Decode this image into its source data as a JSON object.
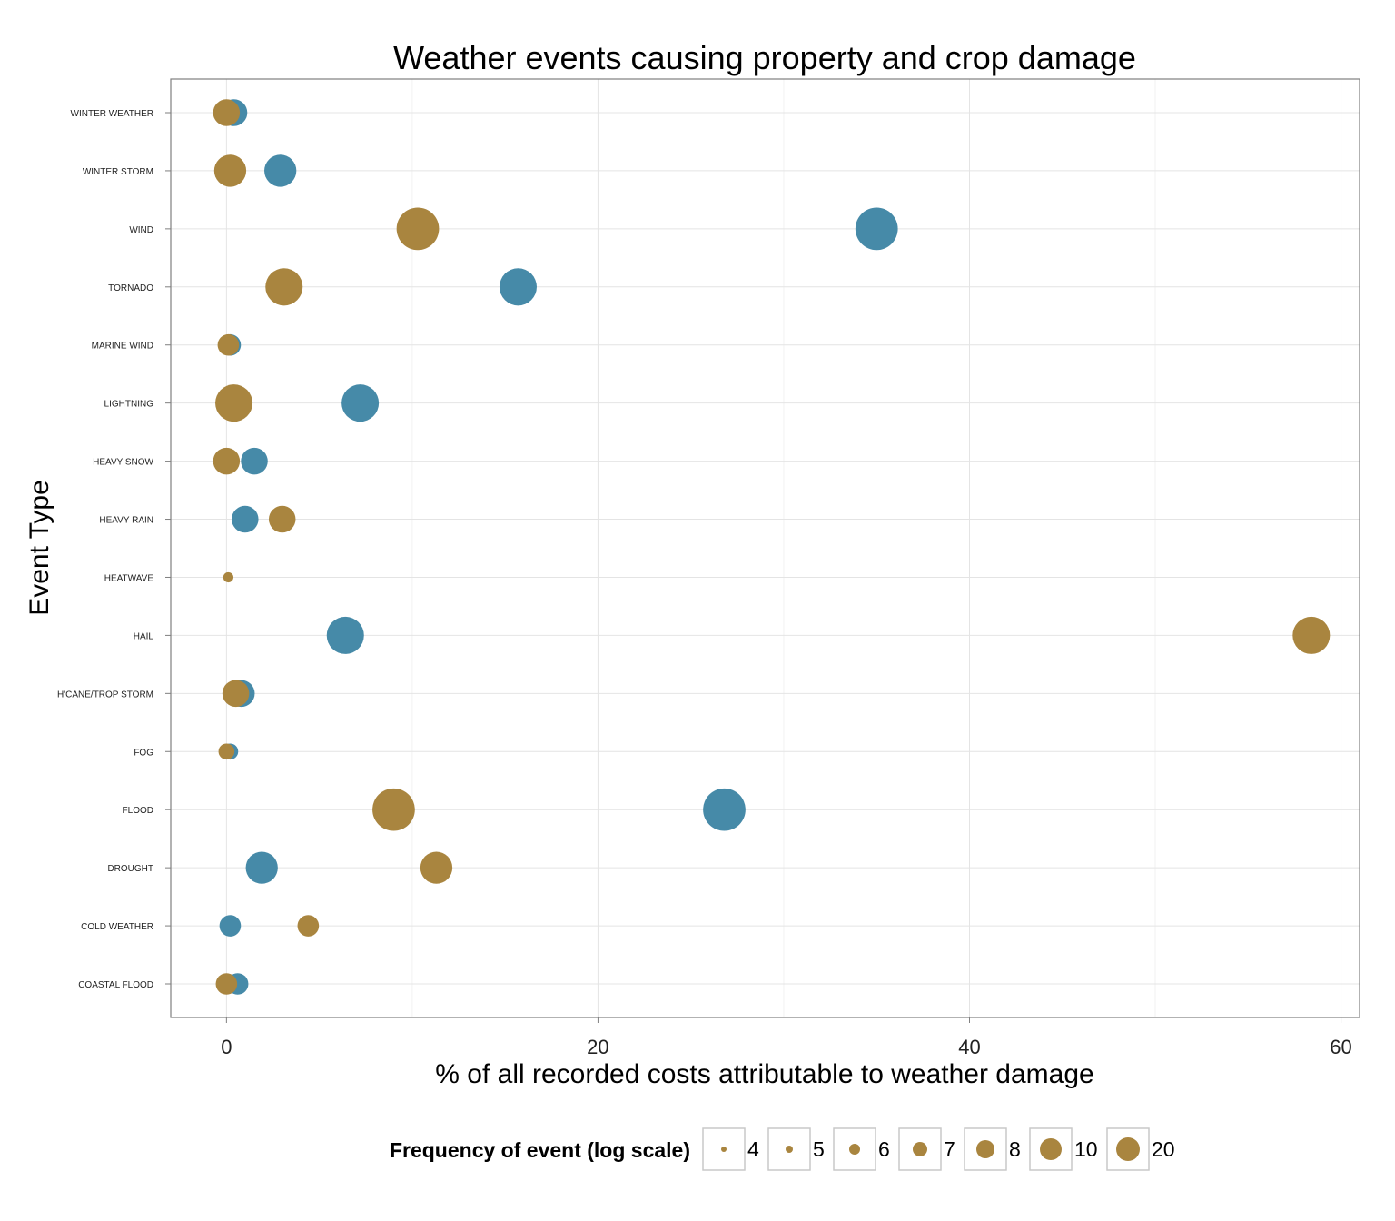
{
  "chart_data": {
    "type": "scatter",
    "title": "Weather events causing property and crop damage",
    "xlabel": "% of all recorded costs attributable to weather damage",
    "ylabel": "Event Type",
    "xlim": [
      -3,
      61
    ],
    "x_ticks": [
      0,
      20,
      40,
      60
    ],
    "grid": true,
    "categories": [
      "COASTAL FLOOD",
      "COLD WEATHER",
      "DROUGHT",
      "FLOOD",
      "FOG",
      "H'CANE/TROP STORM",
      "HAIL",
      "HEATWAVE",
      "HEAVY RAIN",
      "HEAVY SNOW",
      "LIGHTNING",
      "MARINE WIND",
      "TORNADO",
      "WIND",
      "WINTER STORM",
      "WINTER WEATHER"
    ],
    "series": [
      {
        "color": "#468aa8",
        "points": [
          {
            "category": "COASTAL FLOOD",
            "x": 0.6,
            "size": 6
          },
          {
            "category": "COLD WEATHER",
            "x": 0.2,
            "size": 6
          },
          {
            "category": "DROUGHT",
            "x": 1.9,
            "size": 8
          },
          {
            "category": "FLOOD",
            "x": 26.8,
            "size": 10
          },
          {
            "category": "FOG",
            "x": 0.2,
            "size": 5
          },
          {
            "category": "H'CANE/TROP STORM",
            "x": 0.8,
            "size": 7
          },
          {
            "category": "HAIL",
            "x": 6.4,
            "size": 9
          },
          {
            "category": "HEAVY RAIN",
            "x": 1.0,
            "size": 7
          },
          {
            "category": "HEAVY SNOW",
            "x": 1.5,
            "size": 7
          },
          {
            "category": "LIGHTNING",
            "x": 7.2,
            "size": 9
          },
          {
            "category": "MARINE WIND",
            "x": 0.2,
            "size": 6
          },
          {
            "category": "TORNADO",
            "x": 15.7,
            "size": 9
          },
          {
            "category": "WIND",
            "x": 35.0,
            "size": 10
          },
          {
            "category": "WINTER STORM",
            "x": 2.9,
            "size": 8
          },
          {
            "category": "WINTER WEATHER",
            "x": 0.4,
            "size": 7
          }
        ]
      },
      {
        "color": "#a9853f",
        "points": [
          {
            "category": "COASTAL FLOOD",
            "x": 0.0,
            "size": 6
          },
          {
            "category": "COLD WEATHER",
            "x": 4.4,
            "size": 6
          },
          {
            "category": "DROUGHT",
            "x": 11.3,
            "size": 8
          },
          {
            "category": "FLOOD",
            "x": 9.0,
            "size": 10
          },
          {
            "category": "FOG",
            "x": 0.0,
            "size": 5
          },
          {
            "category": "H'CANE/TROP STORM",
            "x": 0.5,
            "size": 7
          },
          {
            "category": "HAIL",
            "x": 58.4,
            "size": 9
          },
          {
            "category": "HEATWAVE",
            "x": 0.1,
            "size": 4
          },
          {
            "category": "HEAVY RAIN",
            "x": 3.0,
            "size": 7
          },
          {
            "category": "HEAVY SNOW",
            "x": 0.0,
            "size": 7
          },
          {
            "category": "LIGHTNING",
            "x": 0.4,
            "size": 9
          },
          {
            "category": "MARINE WIND",
            "x": 0.1,
            "size": 6
          },
          {
            "category": "TORNADO",
            "x": 3.1,
            "size": 9
          },
          {
            "category": "WIND",
            "x": 10.3,
            "size": 10
          },
          {
            "category": "WINTER STORM",
            "x": 0.2,
            "size": 8
          },
          {
            "category": "WINTER WEATHER",
            "x": 0.0,
            "size": 7
          }
        ]
      }
    ],
    "legend": {
      "title": "Frequency of event (log scale)",
      "placement": "bottom",
      "color": "#a9853f",
      "entries": [
        "4",
        "5",
        "6",
        "7",
        "8",
        "10",
        "20"
      ]
    }
  }
}
